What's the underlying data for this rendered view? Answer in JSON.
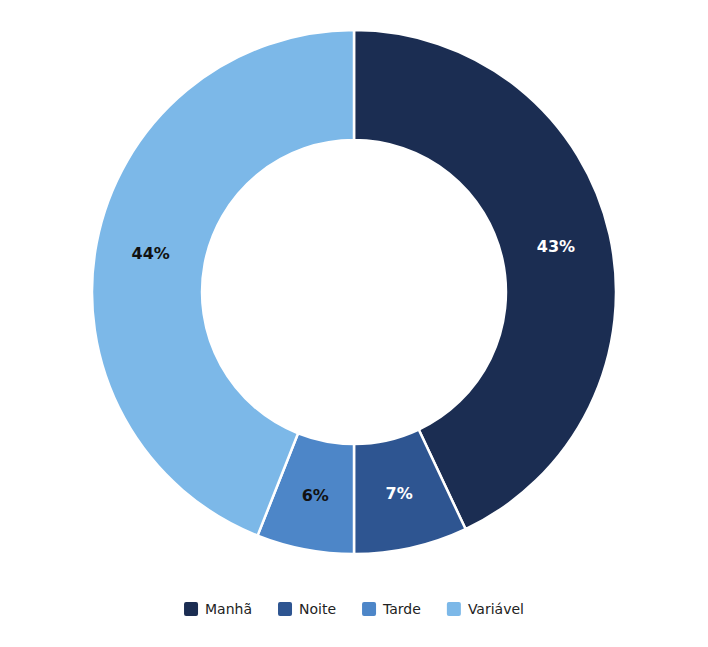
{
  "chart_data": {
    "type": "donut",
    "categories": [
      "Manhã",
      "Noite",
      "Tarde",
      "Variável"
    ],
    "values": [
      43,
      7,
      6,
      44
    ],
    "value_labels": [
      "43%",
      "7%",
      "6%",
      "44%"
    ],
    "colors": [
      "#1b2d52",
      "#2e5591",
      "#4d86c8",
      "#7cb8e8"
    ],
    "data_labels": true,
    "legend": "bottom"
  }
}
